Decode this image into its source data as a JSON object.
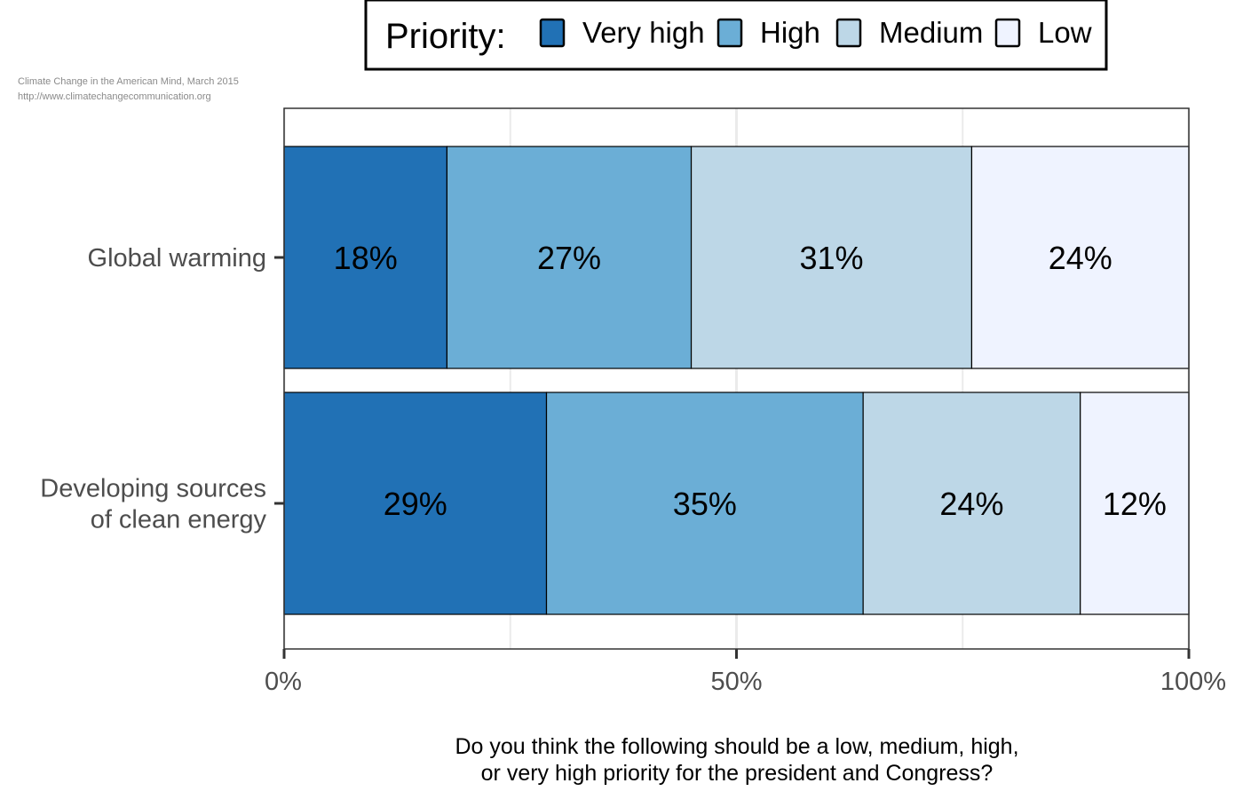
{
  "source": {
    "line1": "Climate Change in the American Mind, March 2015",
    "line2": "http://www.climatechangecommunication.org"
  },
  "legend": {
    "title": "Priority:",
    "placement": "top"
  },
  "chart_data": {
    "type": "bar",
    "orientation": "horizontal",
    "stacked": true,
    "categories": [
      [
        "Global warming"
      ],
      [
        "Developing sources",
        "of clean energy"
      ]
    ],
    "series": [
      {
        "name": "Very high",
        "color": "#2171b5",
        "values": [
          18,
          29
        ],
        "labels": [
          "18%",
          "29%"
        ]
      },
      {
        "name": "High",
        "color": "#6baed6",
        "values": [
          27,
          35
        ],
        "labels": [
          "27%",
          "35%"
        ]
      },
      {
        "name": "Medium",
        "color": "#bdd7e7",
        "values": [
          31,
          24
        ],
        "labels": [
          "31%",
          "24%"
        ]
      },
      {
        "name": "Low",
        "color": "#eff3ff",
        "values": [
          24,
          12
        ],
        "labels": [
          "24%",
          "12%"
        ]
      }
    ],
    "xlim": [
      0,
      100
    ],
    "ticks": [
      0,
      50,
      100
    ],
    "tick_labels": [
      "0%",
      "50%",
      "100%"
    ],
    "xlabel": [
      "Do you think the following should be a low, medium, high,",
      "or very high priority for the president and Congress?"
    ],
    "ylabel": "",
    "grid": true
  }
}
